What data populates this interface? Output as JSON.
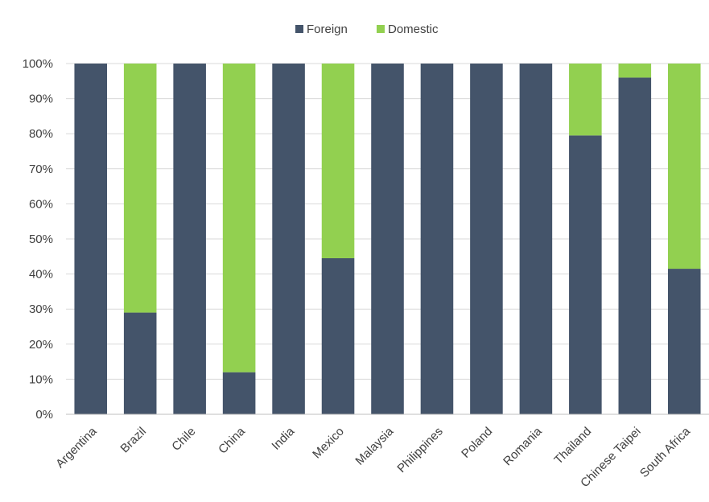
{
  "chart_data": {
    "type": "bar",
    "stacked": true,
    "categories": [
      "Argentina",
      "Brazil",
      "Chile",
      "China",
      "India",
      "Mexico",
      "Malaysia",
      "Philippines",
      "Poland",
      "Romania",
      "Thailand",
      "Chinese Taipei",
      "South Africa"
    ],
    "series": [
      {
        "name": "Foreign",
        "color": "#44546a",
        "values": [
          100,
          29,
          100,
          12,
          100,
          44.5,
          100,
          100,
          100,
          100,
          79.5,
          96,
          41.5
        ]
      },
      {
        "name": "Domestic",
        "color": "#92d050",
        "values": [
          0,
          71,
          0,
          88,
          0,
          55.5,
          0,
          0,
          0,
          0,
          20.5,
          4,
          58.5
        ]
      }
    ],
    "yticks": [
      "0%",
      "10%",
      "20%",
      "30%",
      "40%",
      "50%",
      "60%",
      "70%",
      "80%",
      "90%",
      "100%"
    ],
    "ylim": [
      0,
      100
    ],
    "legend": "top-center",
    "grid": true
  }
}
